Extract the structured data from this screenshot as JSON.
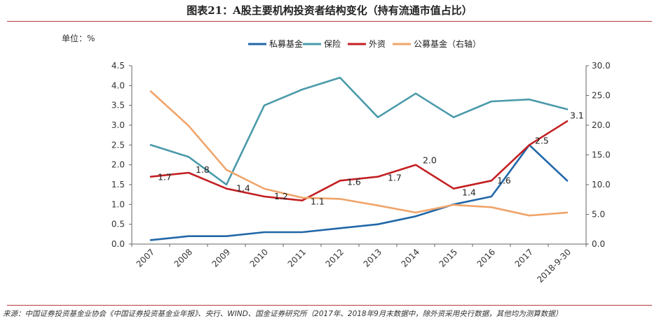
{
  "title": "图表21：A股主要机构投资者结构变化（持有流通市值占比）",
  "unit_label": "单位：%",
  "source": "来源：中国证券投资基金业协会《中国证券投资基金业年报》、央行、WIND、国金证券研究所（2017年、2018年9月末数据中，除外资采用央行数据，其他均为测算数据）",
  "chart_data": {
    "type": "line",
    "categories": [
      "2007",
      "2008",
      "2009",
      "2010",
      "2011",
      "2012",
      "2013",
      "2014",
      "2015",
      "2016",
      "2017",
      "2018-9-30"
    ],
    "ylim_left": [
      0,
      4.5
    ],
    "ylim_right": [
      0,
      30
    ],
    "yticks_left": [
      "0.0",
      "0.5",
      "1.0",
      "1.5",
      "2.0",
      "2.5",
      "3.0",
      "3.5",
      "4.0",
      "4.5"
    ],
    "yticks_right": [
      "0.0",
      "5.0",
      "10.0",
      "15.0",
      "20.0",
      "25.0",
      "30.0"
    ],
    "legend_position": "top-right",
    "series": [
      {
        "name": "私募基金",
        "axis": "left",
        "color": "#2167a8",
        "values": [
          0.1,
          0.2,
          0.2,
          0.3,
          0.3,
          0.4,
          0.5,
          0.7,
          1.0,
          1.2,
          2.5,
          1.6
        ]
      },
      {
        "name": "保险",
        "axis": "left",
        "color": "#4a9aaa",
        "values": [
          2.5,
          2.2,
          1.5,
          3.5,
          3.9,
          4.2,
          3.2,
          3.8,
          3.2,
          3.6,
          3.65,
          3.4
        ]
      },
      {
        "name": "外资",
        "axis": "left",
        "color": "#c32023",
        "values": [
          1.7,
          1.8,
          1.4,
          1.2,
          1.1,
          1.6,
          1.7,
          2.0,
          1.4,
          1.6,
          2.5,
          3.1
        ]
      },
      {
        "name": "公募基金（右轴）",
        "axis": "right",
        "color": "#f0a46a",
        "values": [
          25.7,
          19.9,
          12.5,
          9.3,
          7.8,
          7.6,
          6.5,
          5.3,
          6.6,
          6.2,
          4.8,
          5.3
        ]
      }
    ],
    "data_labels": [
      {
        "series": 2,
        "index": 0,
        "text": "1.7"
      },
      {
        "series": 2,
        "index": 1,
        "text": "1.8"
      },
      {
        "series": 2,
        "index": 2,
        "text": "1.4"
      },
      {
        "series": 2,
        "index": 3,
        "text": "1.2"
      },
      {
        "series": 2,
        "index": 4,
        "text": "1.1"
      },
      {
        "series": 2,
        "index": 5,
        "text": "1.6"
      },
      {
        "series": 2,
        "index": 6,
        "text": "1.7"
      },
      {
        "series": 2,
        "index": 7,
        "text": "2.0"
      },
      {
        "series": 2,
        "index": 8,
        "text": "1.4"
      },
      {
        "series": 2,
        "index": 9,
        "text": "1.6"
      },
      {
        "series": 2,
        "index": 10,
        "text": "2.5"
      },
      {
        "series": 2,
        "index": 11,
        "text": "3.1"
      }
    ]
  }
}
